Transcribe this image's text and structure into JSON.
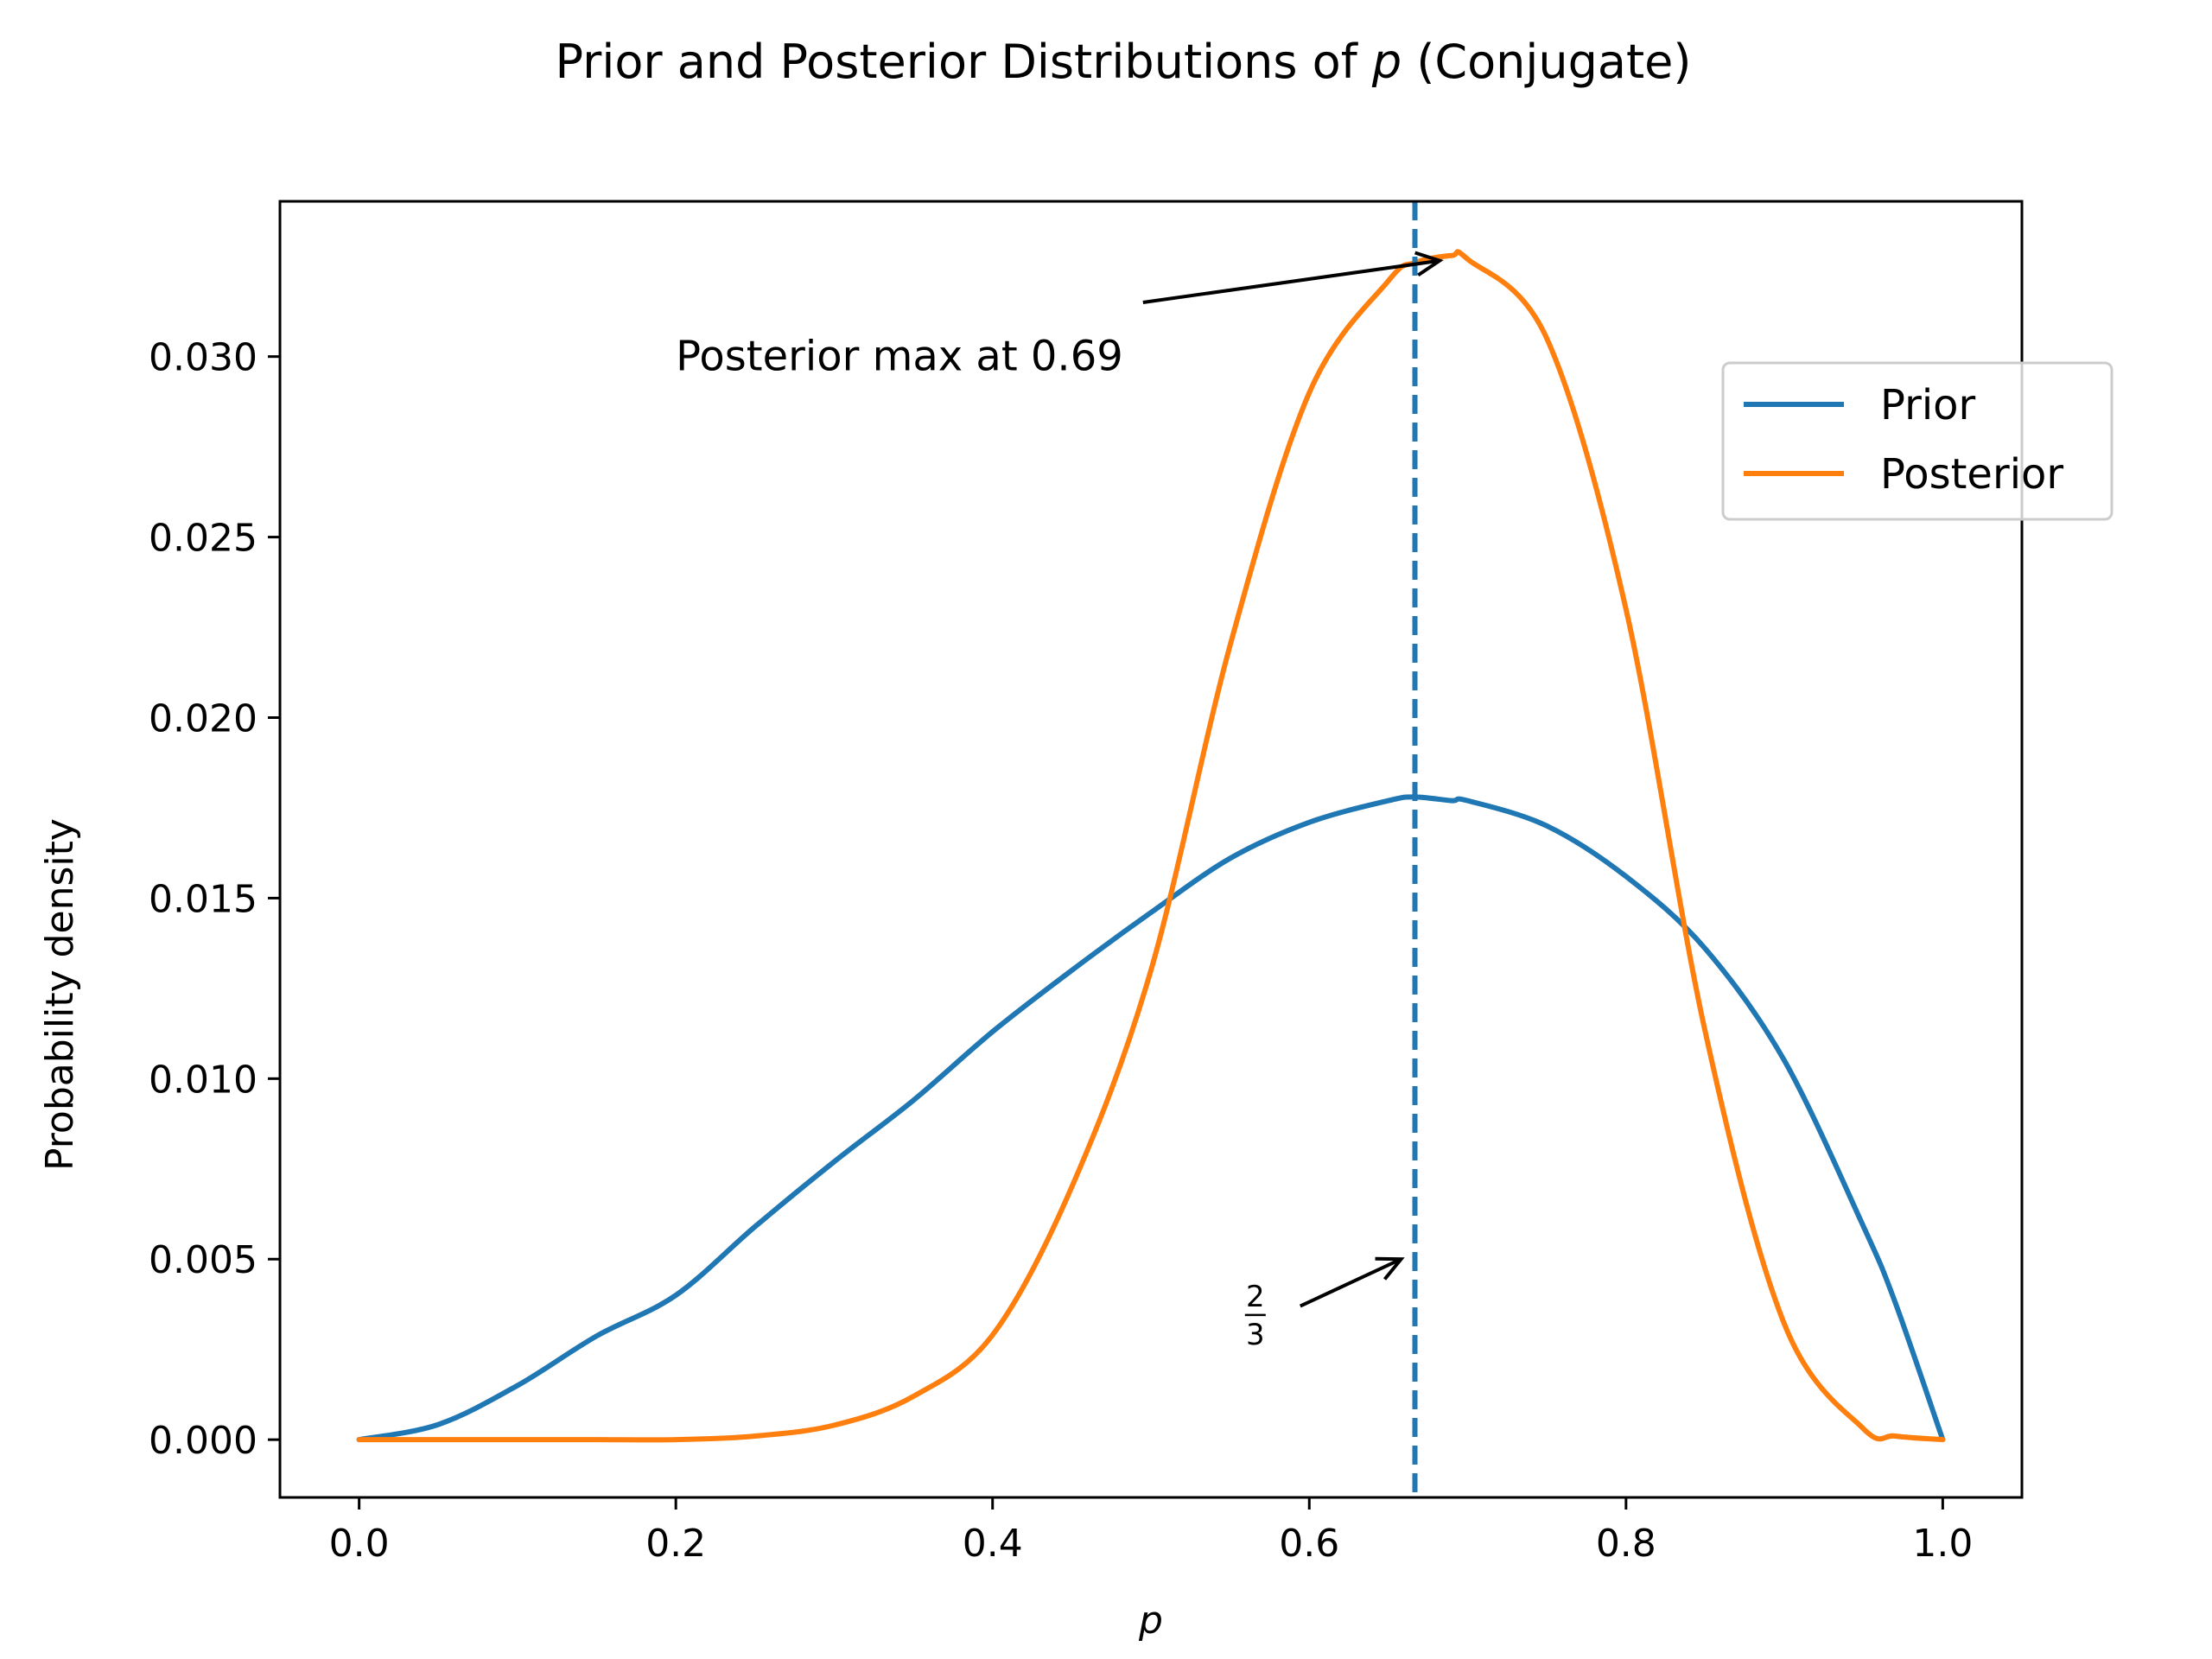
{
  "chart_data": {
    "type": "line",
    "title_prefix": "Prior and Posterior Distributions of ",
    "title_var": "p",
    "title_suffix": " (Conjugate)",
    "xlabel": "p",
    "ylabel": "Probability density",
    "xlim": [
      -0.05,
      1.05
    ],
    "ylim": [
      -0.0016,
      0.0343
    ],
    "x_ticks": [
      0.0,
      0.2,
      0.4,
      0.6,
      0.8,
      1.0
    ],
    "x_tick_labels": [
      "0.0",
      "0.2",
      "0.4",
      "0.6",
      "0.8",
      "1.0"
    ],
    "y_ticks": [
      0.0,
      0.005,
      0.01,
      0.015,
      0.02,
      0.025,
      0.03
    ],
    "y_tick_labels": [
      "0.000",
      "0.005",
      "0.010",
      "0.015",
      "0.020",
      "0.025",
      "0.030"
    ],
    "grid": false,
    "legend_position": "upper right",
    "x": [
      0.0,
      0.05,
      0.1,
      0.15,
      0.2,
      0.25,
      0.3,
      0.35,
      0.4,
      0.45,
      0.5,
      0.55,
      0.6,
      0.65,
      0.6667,
      0.69,
      0.7,
      0.75,
      0.8,
      0.85,
      0.9,
      0.95,
      0.97,
      1.0
    ],
    "series": [
      {
        "name": "Prior",
        "color": "#1f77b4",
        "values": [
          0.0,
          0.00042,
          0.0015,
          0.00287,
          0.004,
          0.0059,
          0.0077,
          0.0094,
          0.0113,
          0.013,
          0.0146,
          0.0161,
          0.0171,
          0.0177,
          0.0178,
          0.0177,
          0.0177,
          0.017,
          0.0156,
          0.0136,
          0.0105,
          0.0059,
          0.0038,
          0.0
        ]
      },
      {
        "name": "Posterior",
        "color": "#ff7f0e",
        "values": [
          0.0,
          0.0,
          0.0,
          0.0,
          0.0,
          0.0001,
          0.0004,
          0.0012,
          0.0029,
          0.007,
          0.013,
          0.022,
          0.029,
          0.0321,
          0.0326,
          0.0328,
          0.0327,
          0.0305,
          0.023,
          0.0113,
          0.0032,
          0.0003,
          0.0001,
          0.0
        ]
      }
    ],
    "vline": {
      "x": 0.6667,
      "color": "#1f77b4",
      "style": "dashed"
    },
    "annotations": [
      {
        "text": "Posterior max at 0.69",
        "point_x": 0.69,
        "point_y": 0.0328,
        "text_x": 0.2,
        "text_y": 0.03
      },
      {
        "numerator": "2",
        "denominator": "3",
        "point_x": 0.6667,
        "point_y": 0.005,
        "text_x": 0.555,
        "text_y": 0.0035
      }
    ]
  }
}
